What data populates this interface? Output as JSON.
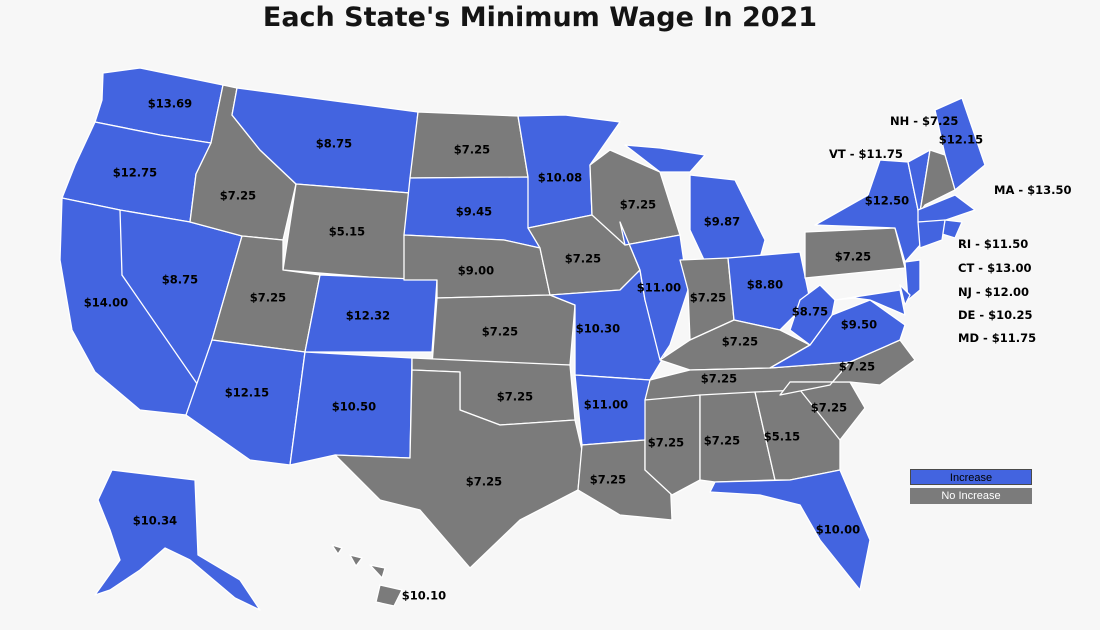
{
  "title": "Each State's Minimum Wage In 2021",
  "colors": {
    "increase": "#4364e0",
    "no_increase": "#7b7b7b",
    "background": "#f7f7f7"
  },
  "legend": [
    {
      "label": "Increase",
      "status": "increase"
    },
    {
      "label": "No Increase",
      "status": "none"
    }
  ],
  "states": {
    "WA": {
      "wage": "$13.69",
      "status": "increase"
    },
    "OR": {
      "wage": "$12.75",
      "status": "increase"
    },
    "CA": {
      "wage": "$14.00",
      "status": "increase"
    },
    "NV": {
      "wage": "$8.75",
      "status": "increase"
    },
    "ID": {
      "wage": "$7.25",
      "status": "none"
    },
    "MT": {
      "wage": "$8.75",
      "status": "increase"
    },
    "WY": {
      "wage": "$5.15",
      "status": "none"
    },
    "UT": {
      "wage": "$7.25",
      "status": "none"
    },
    "AZ": {
      "wage": "$12.15",
      "status": "increase"
    },
    "CO": {
      "wage": "$12.32",
      "status": "increase"
    },
    "NM": {
      "wage": "$10.50",
      "status": "increase"
    },
    "ND": {
      "wage": "$7.25",
      "status": "none"
    },
    "SD": {
      "wage": "$9.45",
      "status": "increase"
    },
    "NE": {
      "wage": "$9.00",
      "status": "none"
    },
    "KS": {
      "wage": "$7.25",
      "status": "none"
    },
    "OK": {
      "wage": "$7.25",
      "status": "none"
    },
    "TX": {
      "wage": "$7.25",
      "status": "none"
    },
    "MN": {
      "wage": "$10.08",
      "status": "increase"
    },
    "IA": {
      "wage": "$7.25",
      "status": "none"
    },
    "MO": {
      "wage": "$10.30",
      "status": "increase"
    },
    "AR": {
      "wage": "$11.00",
      "status": "increase"
    },
    "LA": {
      "wage": "$7.25",
      "status": "none"
    },
    "WI": {
      "wage": "$7.25",
      "status": "none"
    },
    "IL": {
      "wage": "$11.00",
      "status": "increase"
    },
    "MI": {
      "wage": "$9.87",
      "status": "increase"
    },
    "IN": {
      "wage": "$7.25",
      "status": "none"
    },
    "OH": {
      "wage": "$8.80",
      "status": "increase"
    },
    "KY": {
      "wage": "$7.25",
      "status": "none"
    },
    "TN": {
      "wage": "$7.25",
      "status": "none"
    },
    "MS": {
      "wage": "$7.25",
      "status": "none"
    },
    "AL": {
      "wage": "$7.25",
      "status": "none"
    },
    "GA": {
      "wage": "$5.15",
      "status": "none"
    },
    "FL": {
      "wage": "$10.00",
      "status": "increase"
    },
    "SC": {
      "wage": "$7.25",
      "status": "none"
    },
    "NC": {
      "wage": "$7.25",
      "status": "none"
    },
    "VA": {
      "wage": "$9.50",
      "status": "increase"
    },
    "WV": {
      "wage": "$8.75",
      "status": "increase"
    },
    "PA": {
      "wage": "$7.25",
      "status": "none"
    },
    "NY": {
      "wage": "$12.50",
      "status": "increase"
    },
    "ME": {
      "wage": "$12.15",
      "status": "increase"
    },
    "AK": {
      "wage": "$10.34",
      "status": "increase"
    },
    "HI": {
      "wage": "$10.10",
      "status": "none"
    },
    "VT": {
      "wage": "",
      "status": "increase"
    },
    "NH": {
      "wage": "",
      "status": "none"
    },
    "MA": {
      "wage": "",
      "status": "increase"
    },
    "RI": {
      "wage": "",
      "status": "increase"
    },
    "CT": {
      "wage": "",
      "status": "increase"
    },
    "NJ": {
      "wage": "",
      "status": "increase"
    },
    "DE": {
      "wage": "",
      "status": "increase"
    },
    "MD": {
      "wage": "",
      "status": "increase"
    }
  },
  "callouts": {
    "NH": "NH - $7.25",
    "VT": "VT - $11.75",
    "MA": "MA - $13.50",
    "RI": "RI - $11.50",
    "CT": "CT - $13.00",
    "NJ": "NJ - $12.00",
    "DE": "DE - $10.25",
    "MD": "MD - $11.75"
  }
}
